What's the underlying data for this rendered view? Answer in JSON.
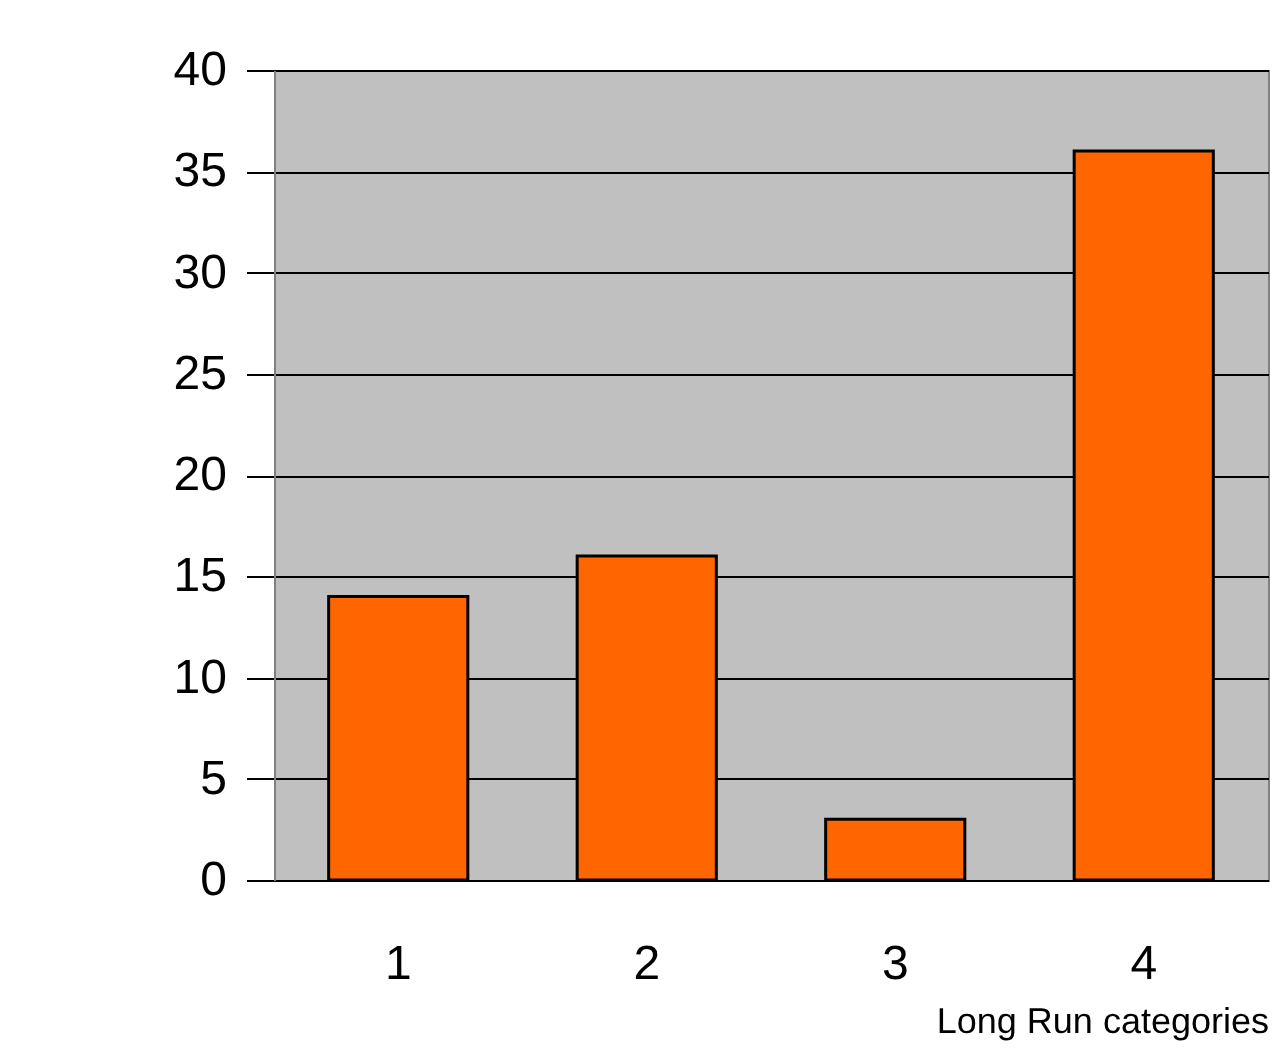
{
  "chart_data": {
    "type": "bar",
    "xlabel": "Long Run categories",
    "categories": [
      "1",
      "2",
      "3",
      "4"
    ],
    "values": [
      14,
      16,
      3,
      36
    ],
    "color": "#ff6600",
    "ylim": [
      0,
      40
    ],
    "yticks": [
      0,
      5,
      10,
      15,
      20,
      25,
      30,
      35,
      40
    ],
    "grid": "y"
  }
}
